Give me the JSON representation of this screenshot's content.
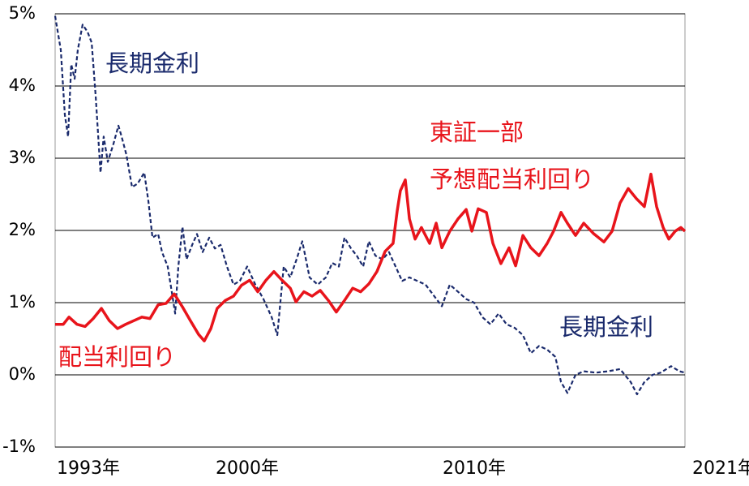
{
  "chart_data": {
    "type": "line",
    "ylim": [
      -1,
      5
    ],
    "yticks": [
      {
        "value": -1,
        "label": "-1%"
      },
      {
        "value": 0,
        "label": "0%"
      },
      {
        "value": 1,
        "label": "1%"
      },
      {
        "value": 2,
        "label": "2%"
      },
      {
        "value": 3,
        "label": "3%"
      },
      {
        "value": 4,
        "label": "4%"
      },
      {
        "value": 5,
        "label": "5%"
      }
    ],
    "xlim": [
      1992.25,
      2020
    ],
    "xticks": [
      {
        "value": 1993,
        "label": "1993年"
      },
      {
        "value": 2000,
        "label": "2000年"
      },
      {
        "value": 2010,
        "label": "2010年"
      },
      {
        "value": 2021,
        "label": "2021年"
      }
    ],
    "grid": true,
    "series": [
      {
        "name": "長期金利",
        "color": "#1a2a6c",
        "dashed": true,
        "x": [
          1992.25,
          1992.5,
          1992.68,
          1992.82,
          1992.96,
          1993.11,
          1993.25,
          1993.46,
          1993.68,
          1993.86,
          1994.04,
          1994.25,
          1994.39,
          1994.57,
          1994.82,
          1995.04,
          1995.18,
          1995.39,
          1995.64,
          1995.89,
          1996.18,
          1996.36,
          1996.54,
          1996.79,
          1996.96,
          1997.21,
          1997.39,
          1997.54,
          1997.68,
          1997.86,
          1998.04,
          1998.29,
          1998.5,
          1998.75,
          1999.04,
          1999.29,
          1999.54,
          1999.82,
          2000.11,
          2000.39,
          2000.71,
          2001.07,
          2001.43,
          2001.79,
          2002.04,
          2002.32,
          2002.61,
          2002.89,
          2003.14,
          2003.46,
          2003.82,
          2004.18,
          2004.46,
          2004.75,
          2005,
          2005.29,
          2005.54,
          2005.82,
          2006.07,
          2006.36,
          2006.68,
          2006.96,
          2007.25,
          2007.54,
          2007.86,
          2008.21,
          2008.57,
          2008.93,
          2009.29,
          2009.64,
          2010,
          2010.36,
          2010.71,
          2011.07,
          2011.43,
          2011.79,
          2012.14,
          2012.5,
          2012.86,
          2013.21,
          2013.57,
          2013.93,
          2014.29,
          2014.54,
          2014.82,
          2015.18,
          2015.54,
          2016.07,
          2016.61,
          2017.14,
          2017.61,
          2017.89,
          2018.21,
          2018.57,
          2018.93,
          2019.39,
          2019.75,
          2020
        ],
        "values": [
          4.97,
          4.5,
          3.6,
          3.3,
          4.3,
          4.1,
          4.5,
          4.85,
          4.75,
          4.6,
          3.85,
          2.8,
          3.3,
          2.95,
          3.2,
          3.45,
          3.3,
          3.05,
          2.6,
          2.65,
          2.8,
          2.4,
          1.9,
          1.95,
          1.7,
          1.5,
          1.15,
          0.85,
          1.5,
          2.05,
          1.6,
          1.8,
          1.95,
          1.7,
          1.9,
          1.75,
          1.8,
          1.5,
          1.25,
          1.3,
          1.5,
          1.25,
          1.05,
          0.8,
          0.55,
          1.5,
          1.35,
          1.6,
          1.85,
          1.35,
          1.25,
          1.35,
          1.55,
          1.5,
          1.9,
          1.75,
          1.65,
          1.5,
          1.85,
          1.65,
          1.6,
          1.7,
          1.5,
          1.3,
          1.35,
          1.3,
          1.25,
          1.1,
          0.95,
          1.25,
          1.15,
          1.05,
          1.0,
          0.8,
          0.7,
          0.85,
          0.7,
          0.65,
          0.55,
          0.3,
          0.4,
          0.35,
          0.25,
          -0.1,
          -0.25,
          0,
          0.05,
          0.03,
          0.05,
          0.08,
          -0.1,
          -0.27,
          -0.1,
          0,
          0.03,
          0.12,
          0.05,
          0.03
        ]
      },
      {
        "name": "配当利回り",
        "color": "#e8141b",
        "dashed": false,
        "x": [
          1992.25,
          1992.61,
          1992.86,
          1993.21,
          1993.57,
          1993.93,
          1994.29,
          1994.64,
          1995,
          1995.36,
          1995.71,
          1996.07,
          1996.43,
          1996.79,
          1997.14,
          1997.5,
          1997.86,
          1998.21,
          1998.57,
          1998.82,
          1999.11,
          1999.39,
          1999.75,
          2000.11,
          2000.46,
          2000.82,
          2001.18,
          2001.54,
          2001.89,
          2002.25,
          2002.61,
          2002.86,
          2003.21,
          2003.57,
          2003.93,
          2004.29,
          2004.64,
          2005,
          2005.36,
          2005.71,
          2006.07,
          2006.43,
          2006.79,
          2007.14,
          2007.32,
          2007.46,
          2007.68,
          2007.86,
          2008.11,
          2008.39,
          2008.75,
          2009.04,
          2009.29,
          2009.64,
          2010,
          2010.36,
          2010.61,
          2010.89,
          2011.25,
          2011.54,
          2011.89,
          2012.25,
          2012.54,
          2012.86,
          2013.21,
          2013.57,
          2013.93,
          2014.21,
          2014.54,
          2014.82,
          2015.18,
          2015.54,
          2015.96,
          2016.43,
          2016.79,
          2017.14,
          2017.5,
          2017.86,
          2018.21,
          2018.5,
          2018.75,
          2019.04,
          2019.29,
          2019.57,
          2019.82,
          2020
        ],
        "values": [
          0.7,
          0.7,
          0.8,
          0.7,
          0.67,
          0.78,
          0.92,
          0.75,
          0.64,
          0.7,
          0.75,
          0.8,
          0.78,
          0.97,
          0.99,
          1.12,
          0.94,
          0.75,
          0.56,
          0.47,
          0.64,
          0.92,
          1.03,
          1.09,
          1.24,
          1.31,
          1.15,
          1.31,
          1.43,
          1.31,
          1.2,
          1.01,
          1.15,
          1.09,
          1.17,
          1.03,
          0.87,
          1.03,
          1.2,
          1.15,
          1.26,
          1.43,
          1.71,
          1.82,
          2.27,
          2.55,
          2.7,
          2.16,
          1.88,
          2.04,
          1.82,
          2.1,
          1.76,
          1.99,
          2.16,
          2.29,
          1.99,
          2.3,
          2.25,
          1.82,
          1.54,
          1.76,
          1.51,
          1.93,
          1.76,
          1.65,
          1.82,
          1.99,
          2.25,
          2.1,
          1.93,
          2.1,
          1.96,
          1.84,
          1.99,
          2.38,
          2.58,
          2.44,
          2.33,
          2.78,
          2.33,
          2.04,
          1.88,
          1.99,
          2.04,
          1.99
        ]
      }
    ],
    "annotations": [
      {
        "text": "長期金利",
        "color": "#1a2a6c"
      },
      {
        "text": "東証一部",
        "color": "#e8141b"
      },
      {
        "text": "予想配当利回り",
        "color": "#e8141b"
      }
    ]
  }
}
